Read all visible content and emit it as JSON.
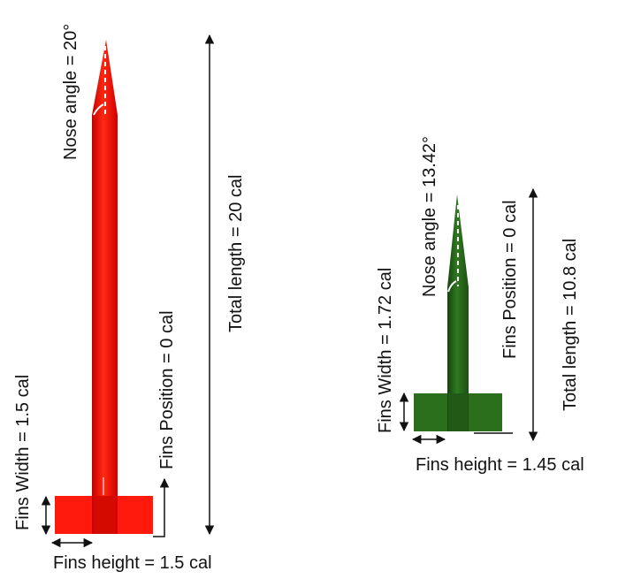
{
  "colors": {
    "rocket_a_body": "#ff1a0d",
    "rocket_a_shade": "#c40000",
    "rocket_b_body": "#2b6e1c",
    "rocket_b_shade": "#164210",
    "annotation": "#111111"
  },
  "rocket_a": {
    "nose_angle_label": "Nose angle = 20°",
    "total_length_label": "Total length = 20 cal",
    "fins_position_label": "Fins Position = 0 cal",
    "fins_width_label": "Fins Width = 1.5 cal",
    "fins_height_label": "Fins height = 1.5 cal"
  },
  "rocket_b": {
    "nose_angle_label": "Nose angle = 13.42°",
    "total_length_label": "Total length = 10.8 cal",
    "fins_position_label": "Fins Position = 0 cal",
    "fins_width_label": "Fins Width = 1.72 cal",
    "fins_height_label": "Fins height = 1.45 cal"
  }
}
